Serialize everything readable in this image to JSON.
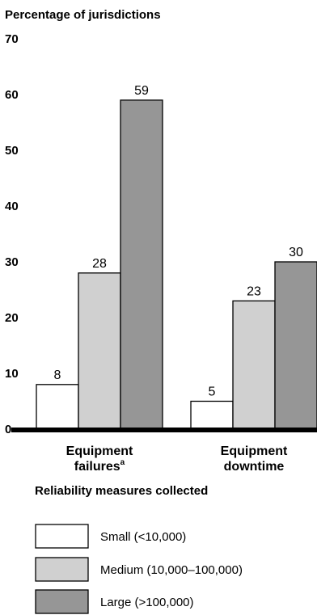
{
  "chart_data": {
    "type": "bar",
    "ylabel": "Percentage of jurisdictions",
    "xlabel": "Reliability measures collected",
    "ylim": [
      0,
      70
    ],
    "yticks": [
      "0",
      "10",
      "20",
      "30",
      "40",
      "50",
      "60",
      "70"
    ],
    "grid": false,
    "legend_placement": "bottom",
    "categories": [
      {
        "line1": "Equipment",
        "line2": "failures",
        "sup": "a"
      },
      {
        "line1": "Equipment",
        "line2": "downtime",
        "sup": ""
      }
    ],
    "series": [
      {
        "name": "Small (<10,000)",
        "values": [
          8,
          5
        ],
        "color": "#ffffff"
      },
      {
        "name": "Medium (10,000–100,000)",
        "values": [
          28,
          23
        ],
        "color": "#d0d0d0"
      },
      {
        "name": "Large (>100,000)",
        "values": [
          59,
          30
        ],
        "color": "#969696"
      }
    ]
  }
}
